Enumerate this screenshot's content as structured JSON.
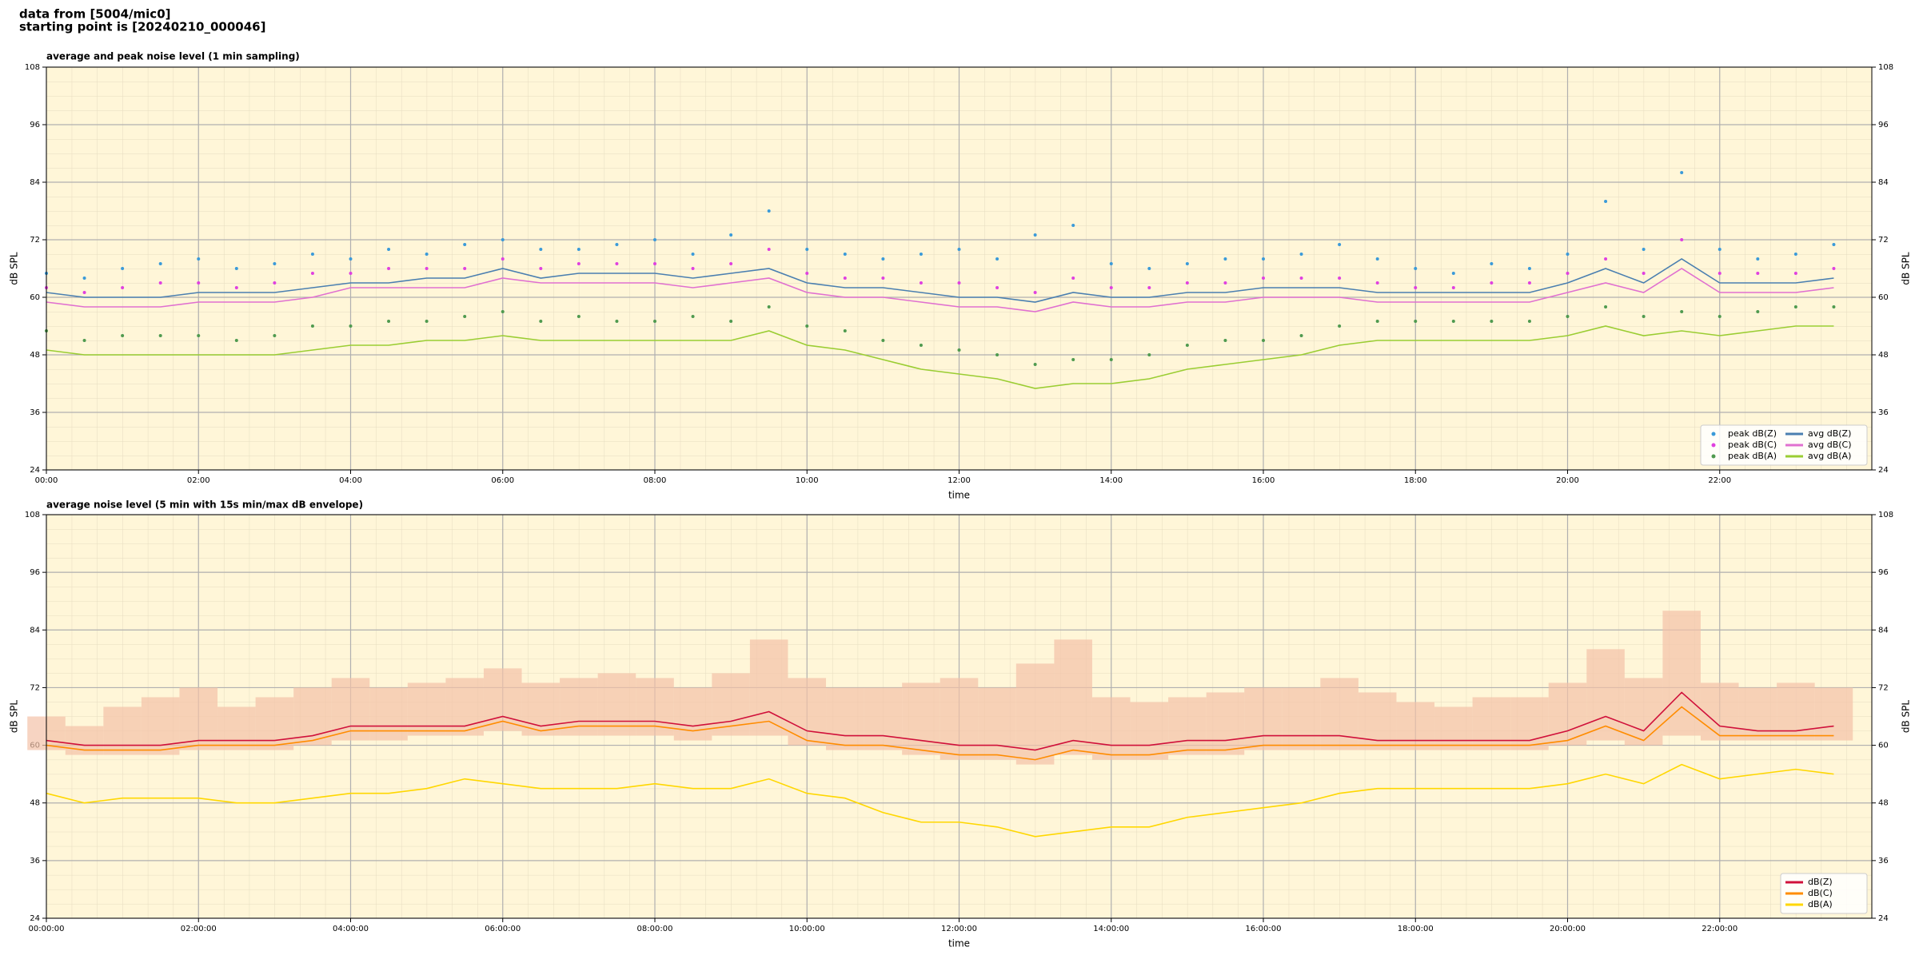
{
  "header": {
    "source": "data from [5004/mic0]",
    "start": "starting point is [20240210_000046]"
  },
  "chart_data": [
    {
      "type": "line",
      "title": "average and peak noise level (1 min sampling)",
      "xlabel": "time",
      "ylabel": "dB SPL",
      "xlim": [
        0,
        24
      ],
      "ylim": [
        24,
        108
      ],
      "yticks": [
        24,
        36,
        48,
        60,
        72,
        84,
        96,
        108
      ],
      "xticks": [
        {
          "value": 0,
          "label": "00:00"
        },
        {
          "value": 2,
          "label": "02:00"
        },
        {
          "value": 4,
          "label": "04:00"
        },
        {
          "value": 6,
          "label": "06:00"
        },
        {
          "value": 8,
          "label": "08:00"
        },
        {
          "value": 10,
          "label": "10:00"
        },
        {
          "value": 12,
          "label": "12:00"
        },
        {
          "value": 14,
          "label": "14:00"
        },
        {
          "value": 16,
          "label": "16:00"
        },
        {
          "value": 18,
          "label": "18:00"
        },
        {
          "value": 20,
          "label": "20:00"
        },
        {
          "value": 22,
          "label": "22:00"
        }
      ],
      "grid": true,
      "legend": "lower right",
      "legend_columns": 2,
      "x": [
        0,
        0.5,
        1,
        1.5,
        2,
        2.5,
        3,
        3.5,
        4,
        4.5,
        5,
        5.5,
        6,
        6.5,
        7,
        7.5,
        8,
        8.5,
        9,
        9.5,
        10,
        10.5,
        11,
        11.5,
        12,
        12.5,
        13,
        13.5,
        14,
        14.5,
        15,
        15.5,
        16,
        16.5,
        17,
        17.5,
        18,
        18.5,
        19,
        19.5,
        20,
        20.5,
        21,
        21.5,
        22,
        22.5,
        23,
        23.5
      ],
      "series": [
        {
          "name": "peak dB(Z)",
          "type": "scatter",
          "color": "#3a9ad9",
          "values": [
            65,
            64,
            66,
            67,
            68,
            66,
            67,
            69,
            68,
            70,
            69,
            71,
            72,
            70,
            70,
            71,
            72,
            69,
            73,
            78,
            70,
            69,
            68,
            69,
            70,
            68,
            73,
            75,
            67,
            66,
            67,
            68,
            68,
            69,
            71,
            68,
            66,
            65,
            67,
            66,
            69,
            80,
            70,
            86,
            70,
            68,
            69,
            71
          ]
        },
        {
          "name": "peak dB(C)",
          "type": "scatter",
          "color": "#e040e0",
          "values": [
            62,
            61,
            62,
            63,
            63,
            62,
            63,
            65,
            65,
            66,
            66,
            66,
            68,
            66,
            67,
            67,
            67,
            66,
            67,
            70,
            65,
            64,
            64,
            63,
            63,
            62,
            61,
            64,
            62,
            62,
            63,
            63,
            64,
            64,
            64,
            63,
            62,
            62,
            63,
            63,
            65,
            68,
            65,
            72,
            65,
            65,
            65,
            66
          ]
        },
        {
          "name": "peak dB(A)",
          "type": "scatter",
          "color": "#4f9a4f",
          "values": [
            53,
            51,
            52,
            52,
            52,
            51,
            52,
            54,
            54,
            55,
            55,
            56,
            57,
            55,
            56,
            55,
            55,
            56,
            55,
            58,
            54,
            53,
            51,
            50,
            49,
            48,
            46,
            47,
            47,
            48,
            50,
            51,
            51,
            52,
            54,
            55,
            55,
            55,
            55,
            55,
            56,
            58,
            56,
            57,
            56,
            57,
            58,
            58
          ]
        },
        {
          "name": "avg dB(Z)",
          "type": "line",
          "color": "#4a7fb0",
          "values": [
            61,
            60,
            60,
            60,
            61,
            61,
            61,
            62,
            63,
            63,
            64,
            64,
            66,
            64,
            65,
            65,
            65,
            64,
            65,
            66,
            63,
            62,
            62,
            61,
            60,
            60,
            59,
            61,
            60,
            60,
            61,
            61,
            62,
            62,
            62,
            61,
            61,
            61,
            61,
            61,
            63,
            66,
            63,
            68,
            63,
            63,
            63,
            64
          ]
        },
        {
          "name": "avg dB(C)",
          "type": "line",
          "color": "#e070d0",
          "values": [
            59,
            58,
            58,
            58,
            59,
            59,
            59,
            60,
            62,
            62,
            62,
            62,
            64,
            63,
            63,
            63,
            63,
            62,
            63,
            64,
            61,
            60,
            60,
            59,
            58,
            58,
            57,
            59,
            58,
            58,
            59,
            59,
            60,
            60,
            60,
            59,
            59,
            59,
            59,
            59,
            61,
            63,
            61,
            66,
            61,
            61,
            61,
            62
          ]
        },
        {
          "name": "avg dB(A)",
          "type": "line",
          "color": "#9acd32",
          "values": [
            49,
            48,
            48,
            48,
            48,
            48,
            48,
            49,
            50,
            50,
            51,
            51,
            52,
            51,
            51,
            51,
            51,
            51,
            51,
            53,
            50,
            49,
            47,
            45,
            44,
            43,
            41,
            42,
            42,
            43,
            45,
            46,
            47,
            48,
            50,
            51,
            51,
            51,
            51,
            51,
            52,
            54,
            52,
            53,
            52,
            53,
            54,
            54
          ]
        }
      ]
    },
    {
      "type": "line",
      "title": "average noise level (5 min with 15s min/max dB envelope)",
      "xlabel": "time",
      "ylabel": "dB SPL",
      "xlim": [
        0,
        24
      ],
      "ylim": [
        24,
        108
      ],
      "yticks": [
        24,
        36,
        48,
        60,
        72,
        84,
        96,
        108
      ],
      "xticks": [
        {
          "value": 0,
          "label": "00:00:00"
        },
        {
          "value": 2,
          "label": "02:00:00"
        },
        {
          "value": 4,
          "label": "04:00:00"
        },
        {
          "value": 6,
          "label": "06:00:00"
        },
        {
          "value": 8,
          "label": "08:00:00"
        },
        {
          "value": 10,
          "label": "10:00:00"
        },
        {
          "value": 12,
          "label": "12:00:00"
        },
        {
          "value": 14,
          "label": "14:00:00"
        },
        {
          "value": 16,
          "label": "16:00:00"
        },
        {
          "value": 18,
          "label": "18:00:00"
        },
        {
          "value": 20,
          "label": "20:00:00"
        },
        {
          "value": 22,
          "label": "22:00:00"
        }
      ],
      "grid": true,
      "legend": "lower right",
      "legend_columns": 1,
      "x": [
        0,
        0.5,
        1,
        1.5,
        2,
        2.5,
        3,
        3.5,
        4,
        4.5,
        5,
        5.5,
        6,
        6.5,
        7,
        7.5,
        8,
        8.5,
        9,
        9.5,
        10,
        10.5,
        11,
        11.5,
        12,
        12.5,
        13,
        13.5,
        14,
        14.5,
        15,
        15.5,
        16,
        16.5,
        17,
        17.5,
        18,
        18.5,
        19,
        19.5,
        20,
        20.5,
        21,
        21.5,
        22,
        22.5,
        23,
        23.5
      ],
      "envelope": {
        "color": "#f4c2a8",
        "upper": [
          66,
          64,
          68,
          70,
          72,
          68,
          70,
          72,
          74,
          72,
          73,
          74,
          76,
          73,
          74,
          75,
          74,
          72,
          75,
          82,
          74,
          72,
          72,
          73,
          74,
          72,
          77,
          82,
          70,
          69,
          70,
          71,
          72,
          72,
          74,
          71,
          69,
          68,
          70,
          70,
          73,
          80,
          74,
          88,
          73,
          72,
          73,
          72
        ],
        "lower": [
          59,
          58,
          58,
          58,
          59,
          59,
          59,
          60,
          61,
          61,
          62,
          62,
          63,
          62,
          62,
          62,
          62,
          61,
          62,
          62,
          60,
          59,
          59,
          58,
          57,
          57,
          56,
          58,
          57,
          57,
          58,
          58,
          59,
          59,
          59,
          59,
          59,
          59,
          59,
          59,
          60,
          61,
          60,
          62,
          61,
          61,
          61,
          61
        ]
      },
      "series": [
        {
          "name": "dB(Z)",
          "type": "line",
          "color": "#d0103a",
          "values": [
            61,
            60,
            60,
            60,
            61,
            61,
            61,
            62,
            64,
            64,
            64,
            64,
            66,
            64,
            65,
            65,
            65,
            64,
            65,
            67,
            63,
            62,
            62,
            61,
            60,
            60,
            59,
            61,
            60,
            60,
            61,
            61,
            62,
            62,
            62,
            61,
            61,
            61,
            61,
            61,
            63,
            66,
            63,
            71,
            64,
            63,
            63,
            64
          ]
        },
        {
          "name": "dB(C)",
          "type": "line",
          "color": "#ff8c00",
          "values": [
            60,
            59,
            59,
            59,
            60,
            60,
            60,
            61,
            63,
            63,
            63,
            63,
            65,
            63,
            64,
            64,
            64,
            63,
            64,
            65,
            61,
            60,
            60,
            59,
            58,
            58,
            57,
            59,
            58,
            58,
            59,
            59,
            60,
            60,
            60,
            60,
            60,
            60,
            60,
            60,
            61,
            64,
            61,
            68,
            62,
            62,
            62,
            62
          ]
        },
        {
          "name": "dB(A)",
          "type": "line",
          "color": "#ffd700",
          "values": [
            50,
            48,
            49,
            49,
            49,
            48,
            48,
            49,
            50,
            50,
            51,
            53,
            52,
            51,
            51,
            51,
            52,
            51,
            51,
            53,
            50,
            49,
            46,
            44,
            44,
            43,
            41,
            42,
            43,
            43,
            45,
            46,
            47,
            48,
            50,
            51,
            51,
            51,
            51,
            51,
            52,
            54,
            52,
            56,
            53,
            54,
            55,
            54
          ]
        }
      ]
    }
  ]
}
